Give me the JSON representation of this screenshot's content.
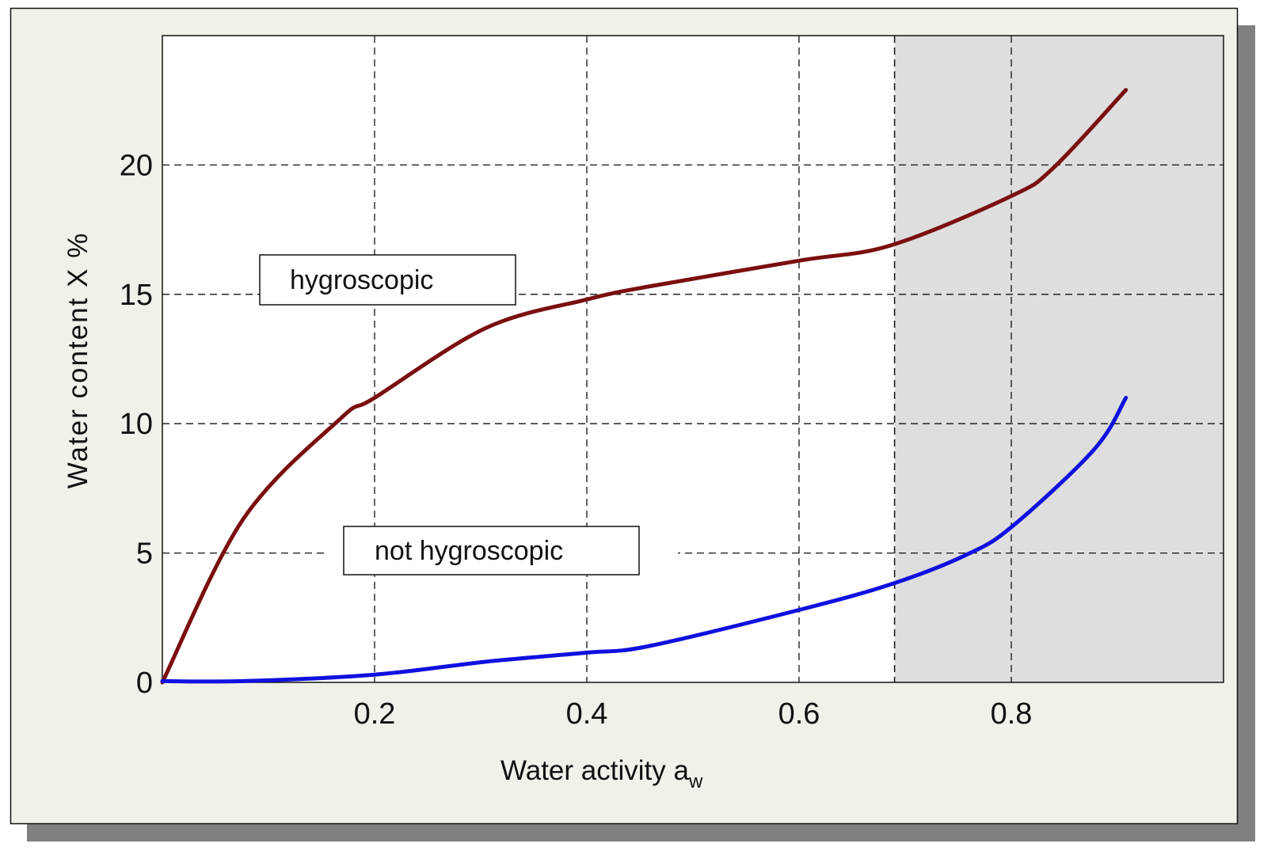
{
  "chart_data": {
    "type": "line",
    "title": "",
    "xlabel": "Water activity a",
    "xlabel_subscript": "w",
    "ylabel": "Water content X %",
    "xlim": [
      0,
      1
    ],
    "ylim": [
      0,
      25
    ],
    "x_ticks": [
      0.2,
      0.4,
      0.6,
      0.8
    ],
    "x_tick_labels": [
      "0.2",
      "0.4",
      "0.6",
      "0.8"
    ],
    "y_ticks": [
      0,
      5,
      10,
      15,
      20
    ],
    "y_tick_labels": [
      "0",
      "5",
      "10",
      "15",
      "20"
    ],
    "grid": true,
    "shaded_region": {
      "x_from": 0.69,
      "x_to": 1.0,
      "color": "#dedede"
    },
    "series": [
      {
        "name": "hygroscopic",
        "color": "#7a0f0f",
        "x": [
          0,
          0.076,
          0.168,
          0.2,
          0.305,
          0.4,
          0.458,
          0.6,
          0.687,
          0.8,
          0.84,
          0.908
        ],
        "y": [
          0,
          6.3,
          10.2,
          11.0,
          13.7,
          14.8,
          15.3,
          16.3,
          16.9,
          18.8,
          19.9,
          22.9
        ]
      },
      {
        "name": "not hygroscopic",
        "color": "#1010e0",
        "x": [
          0,
          0.076,
          0.2,
          0.305,
          0.4,
          0.458,
          0.6,
          0.687,
          0.756,
          0.8,
          0.878,
          0.908
        ],
        "y": [
          0.05,
          0.05,
          0.3,
          0.8,
          1.15,
          1.4,
          2.8,
          3.8,
          4.9,
          6.0,
          9.0,
          11.0
        ]
      }
    ]
  },
  "colors": {
    "background": "#f0f2ea",
    "shadow": "#808080",
    "plot_area": "#ffffff"
  }
}
